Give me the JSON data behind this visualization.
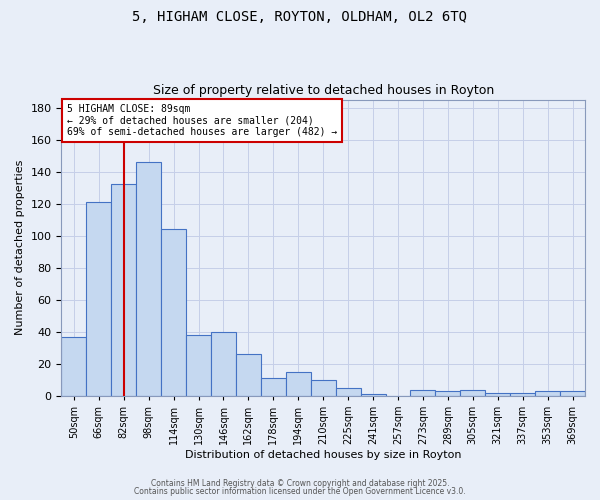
{
  "title_line1": "5, HIGHAM CLOSE, ROYTON, OLDHAM, OL2 6TQ",
  "title_line2": "Size of property relative to detached houses in Royton",
  "xlabel": "Distribution of detached houses by size in Royton",
  "ylabel": "Number of detached properties",
  "categories": [
    "50sqm",
    "66sqm",
    "82sqm",
    "98sqm",
    "114sqm",
    "130sqm",
    "146sqm",
    "162sqm",
    "178sqm",
    "194sqm",
    "210sqm",
    "225sqm",
    "241sqm",
    "257sqm",
    "273sqm",
    "289sqm",
    "305sqm",
    "321sqm",
    "337sqm",
    "353sqm",
    "369sqm"
  ],
  "bar_heights": [
    37,
    121,
    132,
    146,
    104,
    38,
    40,
    26,
    11,
    15,
    10,
    5,
    1,
    0,
    4,
    3,
    4,
    2,
    2,
    3,
    3
  ],
  "bar_color": "#c5d8f0",
  "bar_edge_color": "#4472c4",
  "red_line_x": 2.5,
  "annotation_text": "5 HIGHAM CLOSE: 89sqm\n← 29% of detached houses are smaller (204)\n69% of semi-detached houses are larger (482) →",
  "annotation_box_color": "#ffffff",
  "annotation_box_edge_color": "#cc0000",
  "annotation_text_color": "#000000",
  "red_line_color": "#cc0000",
  "ylim": [
    0,
    185
  ],
  "yticks": [
    0,
    20,
    40,
    60,
    80,
    100,
    120,
    140,
    160,
    180
  ],
  "grid_color": "#c5cfe8",
  "background_color": "#e8eef8",
  "footer_line1": "Contains HM Land Registry data © Crown copyright and database right 2025.",
  "footer_line2": "Contains public sector information licensed under the Open Government Licence v3.0."
}
